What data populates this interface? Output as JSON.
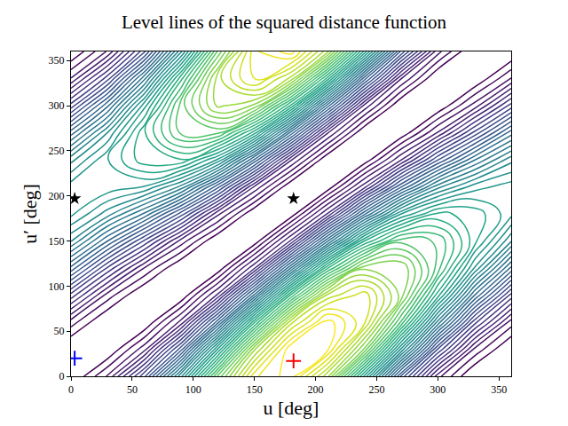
{
  "chart_data": {
    "type": "contour",
    "title": "Level lines of the squared distance function",
    "xlabel": "u [deg]",
    "ylabel": "u′ [deg]",
    "x": [
      0,
      30,
      60,
      90,
      120,
      150,
      180,
      210,
      240,
      270,
      300,
      330,
      360
    ],
    "y": [
      0,
      30,
      60,
      90,
      120,
      150,
      180,
      210,
      240,
      270,
      300,
      330,
      360
    ],
    "z": [
      [
        0.031,
        0.228,
        0.625,
        1.225,
        1.909,
        2.428,
        2.533,
        2.156,
        1.461,
        0.745,
        0.241,
        0.02,
        0.031
      ],
      [
        0.018,
        0.032,
        0.257,
        0.735,
        1.425,
        2.129,
        2.556,
        2.508,
        2.007,
        1.289,
        0.635,
        0.207,
        0.018
      ],
      [
        0.19,
        0.019,
        0.036,
        0.301,
        0.855,
        1.589,
        2.242,
        2.531,
        2.334,
        1.769,
        1.099,
        0.545,
        0.19
      ],
      [
        0.499,
        0.193,
        0.021,
        0.042,
        0.351,
        0.953,
        1.673,
        2.219,
        2.355,
        2.058,
        1.509,
        0.943,
        0.499
      ],
      [
        0.864,
        0.508,
        0.217,
        0.025,
        0.049,
        0.391,
        1.004,
        1.656,
        2.065,
        2.077,
        1.755,
        1.295,
        0.864
      ],
      [
        1.186,
        0.88,
        0.571,
        0.255,
        0.029,
        0.054,
        0.412,
        0.994,
        1.541,
        1.821,
        1.771,
        1.506,
        1.186
      ],
      [
        1.379,
        1.208,
        0.989,
        0.671,
        0.297,
        0.032,
        0.057,
        0.408,
        0.925,
        1.359,
        1.553,
        1.52,
        1.379
      ],
      [
        1.392,
        1.404,
        1.357,
        1.161,
        0.781,
        0.331,
        0.034,
        0.056,
        0.379,
        0.815,
        1.159,
        1.333,
        1.392
      ],
      [
        1.22,
        1.417,
        1.578,
        1.595,
        1.351,
        0.871,
        0.348,
        0.033,
        0.052,
        0.335,
        0.695,
        0.995,
        1.22
      ],
      [
        0.911,
        1.243,
        1.593,
        1.854,
        1.855,
        1.507,
        0.917,
        0.345,
        0.031,
        0.046,
        0.285,
        0.597,
        0.911
      ],
      [
        0.546,
        0.928,
        1.397,
        1.871,
        2.157,
        2.069,
        1.586,
        0.908,
        0.321,
        0.027,
        0.039,
        0.245,
        0.546
      ],
      [
        0.224,
        0.556,
        1.043,
        1.641,
        2.177,
        2.406,
        2.178,
        1.57,
        0.845,
        0.283,
        0.023,
        0.034,
        0.224
      ],
      [
        0.031,
        0.228,
        0.625,
        1.225,
        1.909,
        2.428,
        2.533,
        2.156,
        1.461,
        0.745,
        0.241,
        0.02,
        0.031
      ]
    ],
    "contour_levels": {
      "start": 0.1,
      "end": 2.5,
      "size": 0.06
    },
    "xlim": [
      0,
      360
    ],
    "ylim": [
      0,
      360
    ],
    "xticks": [
      0,
      50,
      100,
      150,
      200,
      250,
      300,
      350
    ],
    "yticks": [
      0,
      50,
      100,
      150,
      200,
      250,
      300,
      350
    ],
    "series": [
      {
        "color": "#000000",
        "marker": "star",
        "x": [
          3,
          182
        ],
        "y": [
          197,
          197
        ]
      },
      {
        "color": "#0000ff",
        "marker": "plus",
        "x": [
          3
        ],
        "y": [
          20
        ]
      },
      {
        "color": "#ff0000",
        "marker": "plus",
        "x": [
          182
        ],
        "y": [
          17
        ]
      }
    ],
    "grid": false
  }
}
